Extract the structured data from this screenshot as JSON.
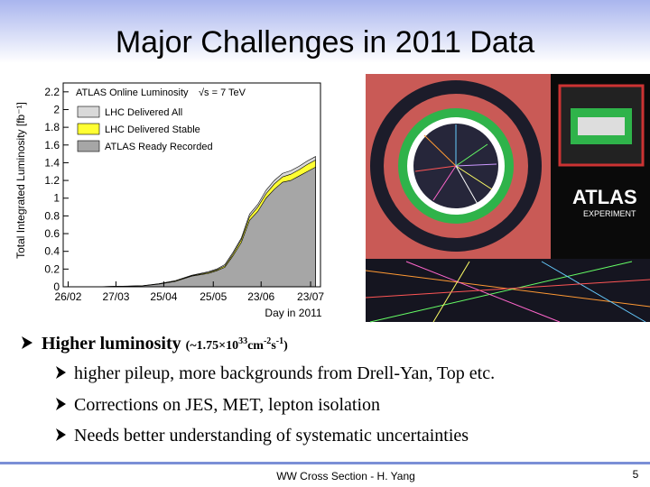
{
  "title": "Major Challenges in 2011 Data",
  "chart_data": {
    "type": "area",
    "title": "ATLAS Online Luminosity",
    "annotation": "√s = 7 TeV",
    "ylabel": "Total Integrated Luminosity [fb⁻¹]",
    "xlabel": "Day in 2011",
    "x": [
      0,
      15,
      30,
      45,
      55,
      65,
      75,
      85,
      90,
      95,
      100,
      105,
      110,
      115,
      120,
      125,
      130,
      135,
      140,
      145,
      150
    ],
    "series": [
      {
        "name": "LHC Delivered All",
        "color": "#d9d9d9",
        "values": [
          0,
          0,
          0.006,
          0.012,
          0.035,
          0.07,
          0.13,
          0.17,
          0.2,
          0.25,
          0.39,
          0.55,
          0.82,
          0.93,
          1.09,
          1.2,
          1.28,
          1.31,
          1.36,
          1.42,
          1.47
        ]
      },
      {
        "name": "LHC Delivered Stable",
        "color": "#ffff33",
        "values": [
          0,
          0,
          0.005,
          0.011,
          0.033,
          0.066,
          0.125,
          0.16,
          0.19,
          0.235,
          0.37,
          0.53,
          0.79,
          0.9,
          1.05,
          1.16,
          1.24,
          1.27,
          1.32,
          1.38,
          1.43
        ]
      },
      {
        "name": "ATLAS Ready Recorded",
        "color": "#a6a6a6",
        "values": [
          0,
          0,
          0.005,
          0.01,
          0.03,
          0.06,
          0.12,
          0.15,
          0.18,
          0.22,
          0.35,
          0.5,
          0.75,
          0.85,
          1.0,
          1.1,
          1.18,
          1.2,
          1.25,
          1.3,
          1.35
        ]
      }
    ],
    "xlim": [
      -3,
      153
    ],
    "xticks": [
      {
        "value": 0,
        "label": "26/02"
      },
      {
        "value": 29,
        "label": "27/03"
      },
      {
        "value": 58,
        "label": "25/04"
      },
      {
        "value": 88,
        "label": "25/05"
      },
      {
        "value": 117,
        "label": "23/06"
      },
      {
        "value": 147,
        "label": "23/07"
      }
    ],
    "ylim": [
      0,
      2.3
    ],
    "yticks": [
      0,
      0.2,
      0.4,
      0.6,
      0.8,
      1,
      1.2,
      1.4,
      1.6,
      1.8,
      2,
      2.2
    ]
  },
  "image": {
    "logo": "ATLAS",
    "logo_sub": "EXPERIMENT"
  },
  "bullets": {
    "main": {
      "text": "Higher luminosity",
      "detail": [
        "(~1.75×10",
        "33",
        "cm",
        "-2",
        "s",
        "-1",
        ")"
      ]
    },
    "sub": [
      "higher pileup, more backgrounds from Drell-Yan, Top etc.",
      "Corrections on JES, MET, lepton isolation",
      "Needs better understanding of systematic uncertainties"
    ]
  },
  "footer": {
    "text": "WW Cross Section - H. Yang",
    "page": "5"
  }
}
